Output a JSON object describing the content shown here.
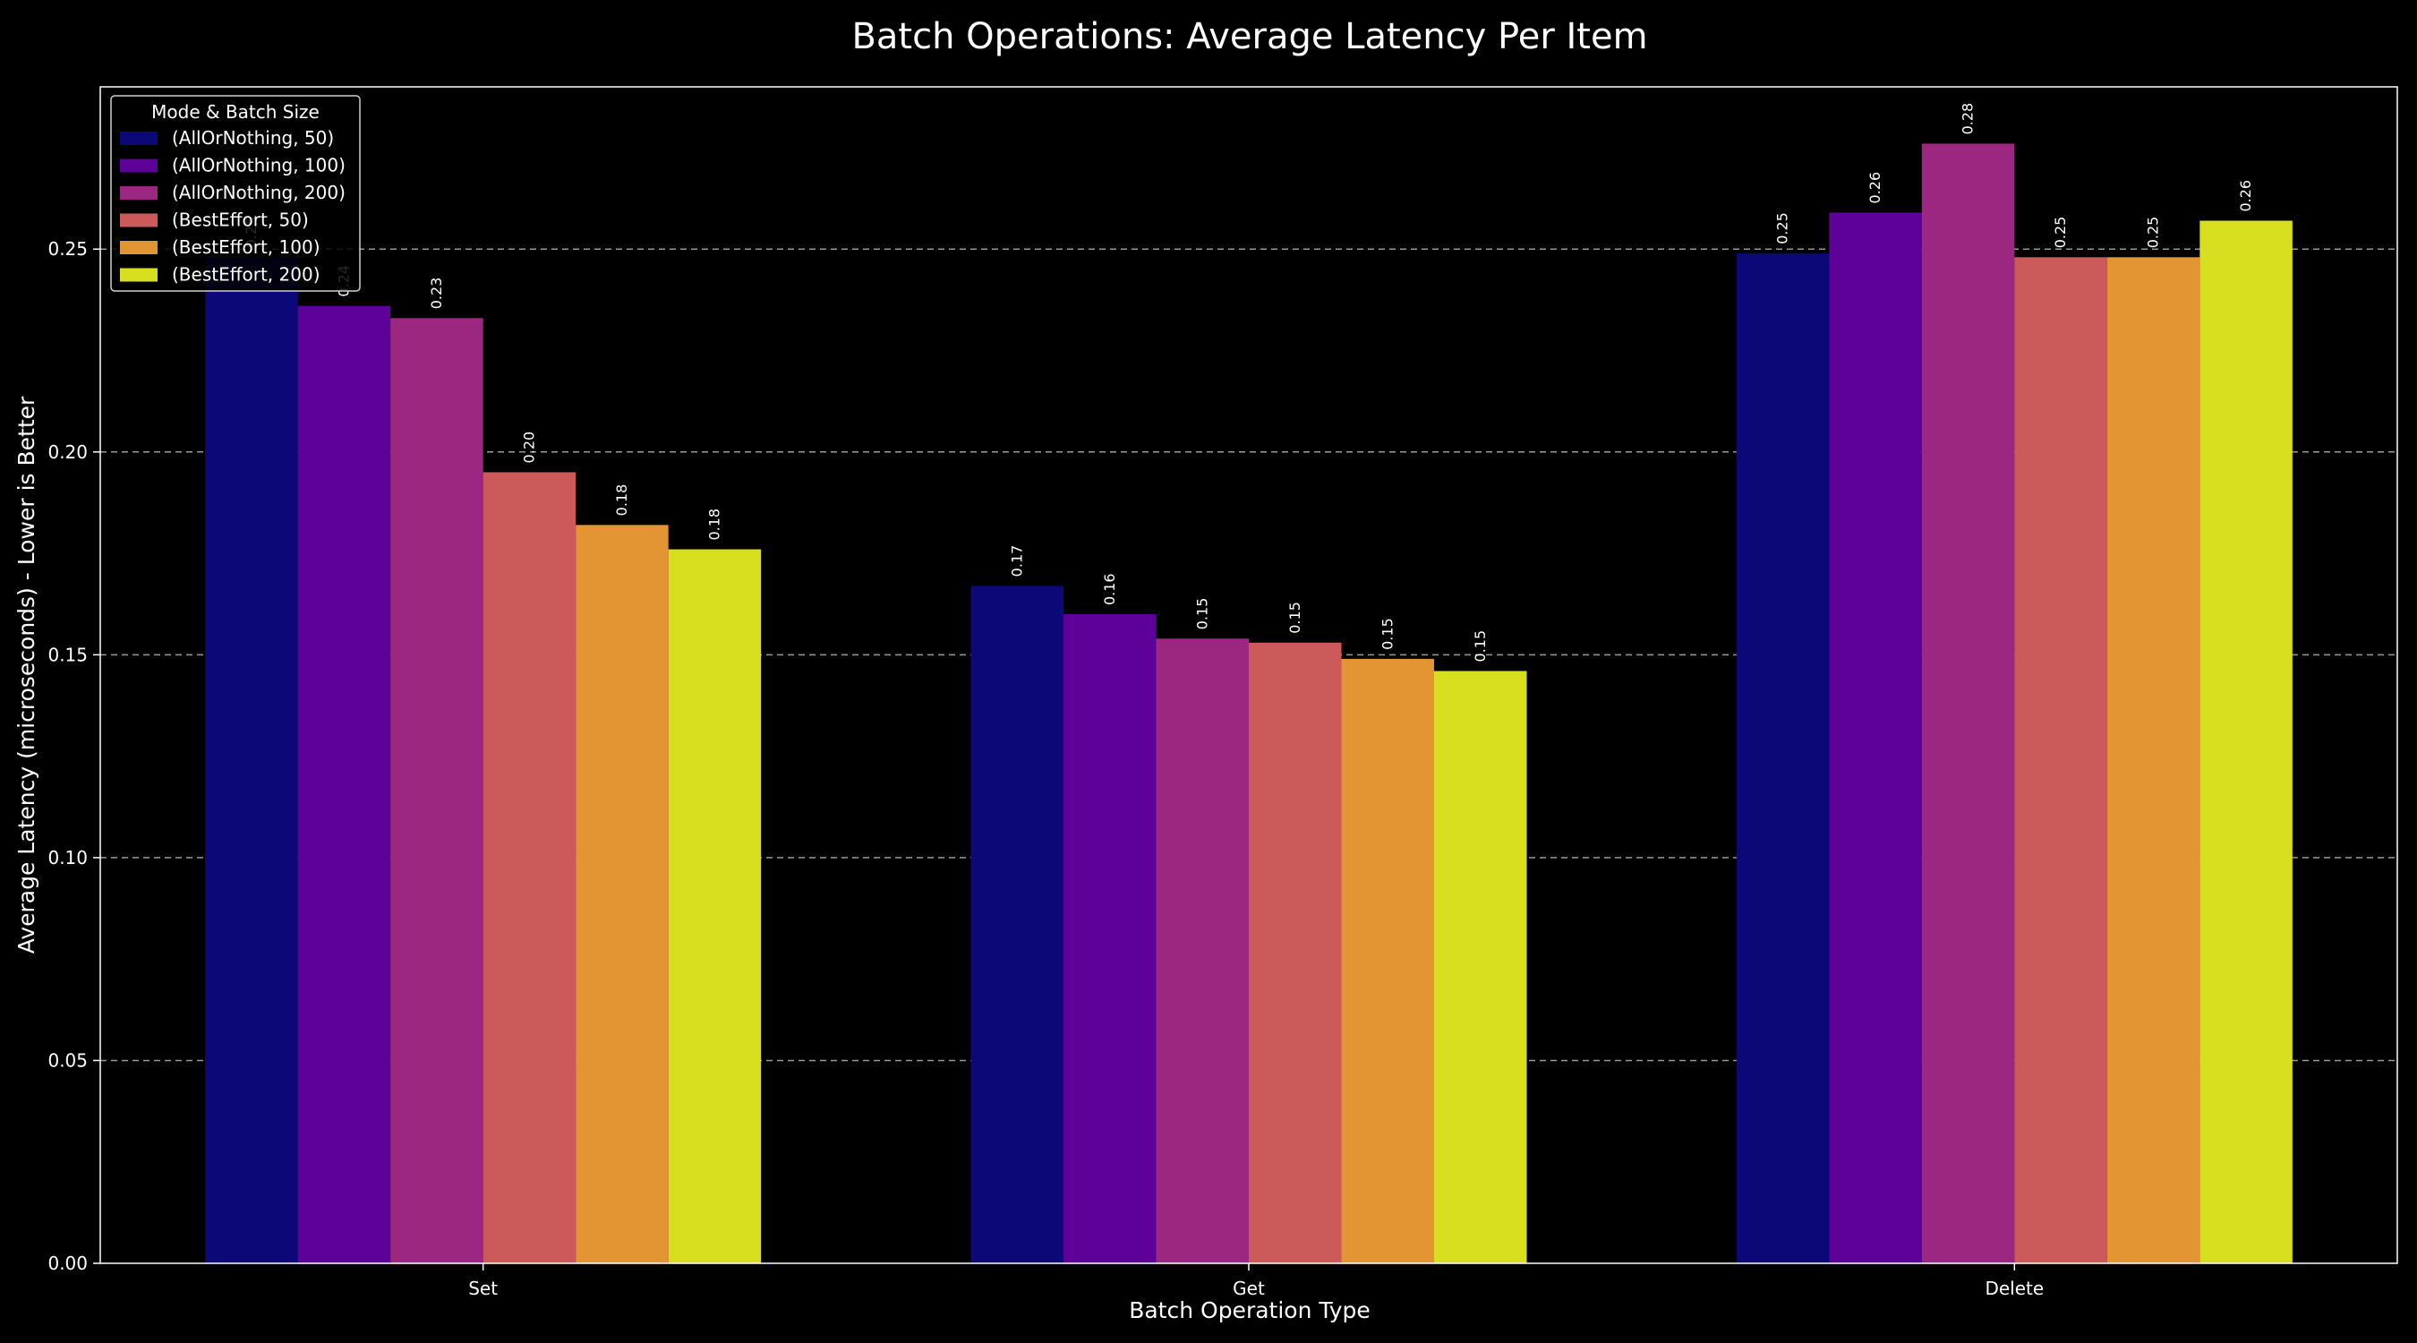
{
  "chart_data": {
    "type": "bar",
    "title": "Batch Operations: Average Latency Per Item",
    "xlabel": "Batch Operation Type",
    "ylabel": "Average Latency (microseconds) - Lower is Better",
    "categories": [
      "Set",
      "Get",
      "Delete"
    ],
    "ylim": [
      0,
      0.29
    ],
    "yticks": [
      0.0,
      0.05,
      0.1,
      0.15,
      0.2,
      0.25
    ],
    "ytick_labels": [
      "0.00",
      "0.05",
      "0.10",
      "0.15",
      "0.20",
      "0.25"
    ],
    "grid": "horizontal dashed",
    "legend": {
      "title": "Mode & Batch Size",
      "placement": "top-left"
    },
    "series": [
      {
        "name": "(AllOrNothing, 50)",
        "color": "#0d0878",
        "values": [
          0.248,
          0.167,
          0.249
        ],
        "labels": [
          "0.25",
          "0.17",
          "0.25"
        ]
      },
      {
        "name": "(AllOrNothing, 100)",
        "color": "#5d0199",
        "values": [
          0.236,
          0.16,
          0.259
        ],
        "labels": [
          "0.24",
          "0.16",
          "0.26"
        ]
      },
      {
        "name": "(AllOrNothing, 200)",
        "color": "#9c2780",
        "values": [
          0.233,
          0.154,
          0.276
        ],
        "labels": [
          "0.23",
          "0.15",
          "0.28"
        ]
      },
      {
        "name": "(BestEffort, 50)",
        "color": "#cc5a5a",
        "values": [
          0.195,
          0.153,
          0.248
        ],
        "labels": [
          "0.20",
          "0.15",
          "0.25"
        ]
      },
      {
        "name": "(BestEffort, 100)",
        "color": "#e29532",
        "values": [
          0.182,
          0.149,
          0.248
        ],
        "labels": [
          "0.18",
          "0.15",
          "0.25"
        ]
      },
      {
        "name": "(BestEffort, 200)",
        "color": "#d8df1f",
        "values": [
          0.176,
          0.146,
          0.257
        ],
        "labels": [
          "0.18",
          "0.15",
          "0.26"
        ]
      }
    ]
  }
}
